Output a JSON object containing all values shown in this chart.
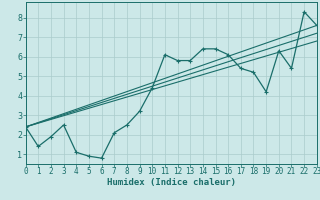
{
  "title": "",
  "xlabel": "Humidex (Indice chaleur)",
  "background_color": "#cce8e8",
  "grid_color": "#aacccc",
  "line_color": "#1a6e6a",
  "x_data": [
    0,
    1,
    2,
    3,
    4,
    5,
    6,
    7,
    8,
    9,
    10,
    11,
    12,
    13,
    14,
    15,
    16,
    17,
    18,
    19,
    20,
    21,
    22,
    23
  ],
  "y_main": [
    2.4,
    1.4,
    1.9,
    2.5,
    1.1,
    0.9,
    0.8,
    2.1,
    2.5,
    3.2,
    4.4,
    6.1,
    5.8,
    5.8,
    6.4,
    6.4,
    6.1,
    5.4,
    5.2,
    4.2,
    6.3,
    5.4,
    8.3,
    7.6
  ],
  "reg_lines": [
    {
      "x0": 0,
      "y0": 2.4,
      "x1": 23,
      "y1": 7.6
    },
    {
      "x0": 0,
      "y0": 2.4,
      "x1": 23,
      "y1": 7.2
    },
    {
      "x0": 0,
      "y0": 2.4,
      "x1": 23,
      "y1": 6.8
    }
  ],
  "xlim": [
    0,
    23
  ],
  "ylim": [
    0.5,
    8.8
  ],
  "yticks": [
    1,
    2,
    3,
    4,
    5,
    6,
    7,
    8
  ],
  "xticks": [
    0,
    1,
    2,
    3,
    4,
    5,
    6,
    7,
    8,
    9,
    10,
    11,
    12,
    13,
    14,
    15,
    16,
    17,
    18,
    19,
    20,
    21,
    22,
    23
  ],
  "tick_fontsize": 5.5,
  "xlabel_fontsize": 6.5
}
